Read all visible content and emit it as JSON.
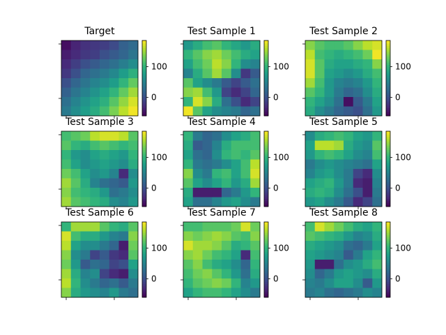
{
  "figure": {
    "background": "#ffffff"
  },
  "chart_data": [
    {
      "type": "heatmap",
      "title": "Target",
      "colormap": "viridis",
      "vmin": -60,
      "vmax": 185,
      "colorbar_ticks": [
        0,
        100
      ],
      "matrix": [
        [
          -50,
          -35,
          -25,
          -20,
          -15,
          -5,
          15,
          25
        ],
        [
          -40,
          -30,
          -20,
          -15,
          0,
          10,
          20,
          35
        ],
        [
          -30,
          -15,
          0,
          10,
          20,
          30,
          45,
          60
        ],
        [
          -20,
          0,
          20,
          30,
          40,
          55,
          75,
          95
        ],
        [
          0,
          20,
          35,
          50,
          60,
          75,
          100,
          125
        ],
        [
          15,
          35,
          50,
          65,
          80,
          100,
          125,
          150
        ],
        [
          30,
          50,
          65,
          80,
          95,
          120,
          145,
          170
        ],
        [
          40,
          60,
          75,
          90,
          110,
          135,
          160,
          180
        ]
      ]
    },
    {
      "type": "heatmap",
      "title": "Test Sample 1",
      "colormap": "viridis",
      "vmin": -60,
      "vmax": 185,
      "colorbar_ticks": [
        0,
        100
      ],
      "matrix": [
        [
          70,
          90,
          110,
          120,
          100,
          85,
          70,
          90
        ],
        [
          100,
          120,
          140,
          150,
          130,
          110,
          90,
          80
        ],
        [
          80,
          110,
          130,
          160,
          140,
          100,
          60,
          50
        ],
        [
          50,
          90,
          120,
          150,
          120,
          60,
          -20,
          10
        ],
        [
          120,
          80,
          60,
          40,
          10,
          -10,
          10,
          30
        ],
        [
          140,
          150,
          110,
          70,
          -10,
          -30,
          -10,
          20
        ],
        [
          100,
          170,
          140,
          90,
          30,
          0,
          -30,
          -10
        ],
        [
          180,
          120,
          80,
          60,
          50,
          40,
          20,
          30
        ]
      ]
    },
    {
      "type": "heatmap",
      "title": "Test Sample 2",
      "colormap": "viridis",
      "vmin": -60,
      "vmax": 185,
      "colorbar_ticks": [
        0,
        100
      ],
      "matrix": [
        [
          140,
          120,
          110,
          110,
          120,
          140,
          160,
          170
        ],
        [
          160,
          110,
          100,
          90,
          100,
          110,
          130,
          180
        ],
        [
          170,
          120,
          90,
          80,
          80,
          90,
          100,
          140
        ],
        [
          170,
          120,
          80,
          70,
          60,
          70,
          90,
          110
        ],
        [
          150,
          110,
          70,
          50,
          40,
          50,
          70,
          100
        ],
        [
          120,
          100,
          70,
          40,
          20,
          30,
          60,
          90
        ],
        [
          100,
          80,
          60,
          30,
          -50,
          10,
          40,
          80
        ],
        [
          90,
          60,
          40,
          20,
          10,
          0,
          30,
          70
        ]
      ]
    },
    {
      "type": "heatmap",
      "title": "Test Sample 3",
      "colormap": "viridis",
      "vmin": -60,
      "vmax": 185,
      "colorbar_ticks": [
        0,
        100
      ],
      "matrix": [
        [
          110,
          120,
          130,
          160,
          170,
          170,
          160,
          120
        ],
        [
          120,
          100,
          90,
          110,
          120,
          110,
          100,
          110
        ],
        [
          100,
          70,
          60,
          80,
          90,
          80,
          70,
          100
        ],
        [
          110,
          80,
          60,
          70,
          80,
          70,
          60,
          90
        ],
        [
          130,
          110,
          80,
          60,
          70,
          50,
          -30,
          60
        ],
        [
          150,
          120,
          90,
          50,
          30,
          20,
          10,
          70
        ],
        [
          140,
          110,
          100,
          90,
          70,
          30,
          40,
          60
        ],
        [
          150,
          120,
          110,
          100,
          90,
          60,
          50,
          70
        ]
      ]
    },
    {
      "type": "heatmap",
      "title": "Test Sample 4",
      "colormap": "viridis",
      "vmin": -60,
      "vmax": 185,
      "colorbar_ticks": [
        0,
        100
      ],
      "matrix": [
        [
          100,
          40,
          20,
          30,
          60,
          80,
          90,
          110
        ],
        [
          90,
          10,
          20,
          50,
          90,
          110,
          110,
          110
        ],
        [
          80,
          30,
          20,
          60,
          100,
          110,
          100,
          120
        ],
        [
          100,
          40,
          30,
          40,
          60,
          80,
          110,
          160
        ],
        [
          140,
          60,
          40,
          100,
          110,
          80,
          110,
          170
        ],
        [
          120,
          80,
          60,
          80,
          100,
          70,
          90,
          150
        ],
        [
          90,
          -40,
          -40,
          -40,
          20,
          40,
          70,
          100
        ],
        [
          80,
          30,
          30,
          50,
          70,
          80,
          60,
          40
        ]
      ]
    },
    {
      "type": "heatmap",
      "title": "Test Sample 5",
      "colormap": "viridis",
      "vmin": -60,
      "vmax": 185,
      "colorbar_ticks": [
        0,
        100
      ],
      "matrix": [
        [
          60,
          90,
          100,
          110,
          100,
          80,
          70,
          100
        ],
        [
          80,
          160,
          160,
          150,
          90,
          70,
          60,
          120
        ],
        [
          70,
          100,
          110,
          100,
          80,
          60,
          50,
          110
        ],
        [
          40,
          60,
          70,
          60,
          50,
          40,
          30,
          80
        ],
        [
          50,
          70,
          80,
          60,
          40,
          -10,
          -30,
          60
        ],
        [
          80,
          90,
          100,
          70,
          40,
          -30,
          -40,
          50
        ],
        [
          90,
          100,
          90,
          60,
          30,
          0,
          -40,
          40
        ],
        [
          70,
          80,
          60,
          40,
          10,
          -30,
          -10,
          30
        ]
      ]
    },
    {
      "type": "heatmap",
      "title": "Test Sample 6",
      "colormap": "viridis",
      "vmin": -60,
      "vmax": 185,
      "colorbar_ticks": [
        0,
        100
      ],
      "matrix": [
        [
          100,
          150,
          150,
          150,
          120,
          100,
          90,
          120
        ],
        [
          170,
          110,
          90,
          90,
          70,
          50,
          40,
          140
        ],
        [
          160,
          80,
          60,
          60,
          40,
          20,
          -40,
          130
        ],
        [
          140,
          60,
          40,
          -10,
          10,
          -20,
          -30,
          120
        ],
        [
          130,
          70,
          10,
          30,
          20,
          -10,
          0,
          80
        ],
        [
          150,
          90,
          50,
          60,
          -10,
          -30,
          -40,
          60
        ],
        [
          160,
          100,
          60,
          40,
          20,
          30,
          10,
          40
        ],
        [
          140,
          90,
          70,
          60,
          50,
          70,
          40,
          30
        ]
      ]
    },
    {
      "type": "heatmap",
      "title": "Test Sample 7",
      "colormap": "viridis",
      "vmin": -60,
      "vmax": 185,
      "colorbar_ticks": [
        0,
        100
      ],
      "matrix": [
        [
          110,
          110,
          120,
          120,
          120,
          130,
          170,
          130
        ],
        [
          140,
          130,
          140,
          150,
          140,
          120,
          110,
          140
        ],
        [
          170,
          150,
          150,
          140,
          120,
          90,
          100,
          120
        ],
        [
          140,
          150,
          130,
          110,
          100,
          80,
          -30,
          110
        ],
        [
          120,
          140,
          110,
          90,
          80,
          60,
          20,
          100
        ],
        [
          110,
          130,
          140,
          120,
          100,
          70,
          30,
          90
        ],
        [
          100,
          120,
          130,
          140,
          130,
          100,
          50,
          70
        ],
        [
          80,
          100,
          110,
          110,
          100,
          80,
          60,
          40
        ]
      ]
    },
    {
      "type": "heatmap",
      "title": "Test Sample 8",
      "colormap": "viridis",
      "vmin": -60,
      "vmax": 185,
      "colorbar_ticks": [
        0,
        100
      ],
      "matrix": [
        [
          110,
          170,
          150,
          130,
          110,
          90,
          80,
          100
        ],
        [
          120,
          110,
          100,
          90,
          70,
          50,
          60,
          90
        ],
        [
          90,
          80,
          70,
          60,
          30,
          20,
          40,
          80
        ],
        [
          80,
          70,
          60,
          50,
          10,
          40,
          80,
          100
        ],
        [
          70,
          -40,
          -40,
          30,
          60,
          70,
          90,
          110
        ],
        [
          60,
          20,
          40,
          70,
          80,
          70,
          60,
          90
        ],
        [
          50,
          40,
          60,
          80,
          80,
          60,
          10,
          70
        ],
        [
          40,
          50,
          30,
          20,
          30,
          40,
          60,
          50
        ]
      ]
    }
  ]
}
